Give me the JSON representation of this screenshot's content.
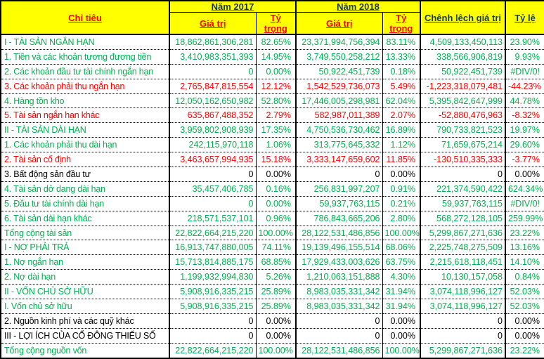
{
  "table": {
    "header": {
      "criteria": "Chỉ tiêu",
      "year1": "Năm 2017",
      "year2": "Năm 2018",
      "value_label_2017": "Giá trị",
      "weight_label_2017": "Tỷ trọng",
      "value_label_2018": "Giá trị",
      "weight_label_2018": "Tỷ trọng",
      "diff_label": "Chênh lệch giá trị",
      "ratio_label": "Tỷ lệ"
    },
    "colors": {
      "header_bg": "#FFFF00",
      "header_dark_text": "#17365D",
      "header_red_text": "#FF0000",
      "positive_green": "#00B050",
      "negative_red": "#FF0000",
      "neutral_black": "#000000"
    },
    "rows": [
      {
        "label": "I - TÀI SẢN NGẮN HẠN",
        "v2017": "18,862,861,306,281",
        "p2017": "82.65%",
        "v2018": "23,371,994,756,394",
        "p2018": "83.11%",
        "diff": "4,509,133,450,113",
        "ratio": "23.90%",
        "color": "green",
        "indent": true
      },
      {
        "label": "1. Tiền và các khoản tương đương tiền",
        "v2017": "3,410,983,351,393",
        "p2017": "14.95%",
        "v2018": "3,749,550,258,212",
        "p2018": "13.33%",
        "diff": "338,566,906,819",
        "ratio": "9.93%",
        "color": "green",
        "indent": false
      },
      {
        "label": "2. Các khoản đầu tư tài chính ngắn hạn",
        "v2017": "0",
        "p2017": "0.00%",
        "v2018": "50,922,451,739",
        "p2018": "0.18%",
        "diff": "50,922,451,739",
        "ratio": "#DIV/0!",
        "color": "green",
        "indent": false
      },
      {
        "label": "3. Các khoản phải thu ngắn hạn",
        "v2017": "2,765,847,815,554",
        "p2017": "12.12%",
        "v2018": "1,542,529,736,073",
        "p2018": "5.49%",
        "diff": "-1,223,318,079,481",
        "ratio": "-44.23%",
        "color": "red",
        "indent": false
      },
      {
        "label": "4. Hàng tồn kho",
        "v2017": "12,050,162,650,982",
        "p2017": "52.80%",
        "v2018": "17,446,005,298,981",
        "p2018": "62.04%",
        "diff": "5,395,842,647,999",
        "ratio": "44.78%",
        "color": "green",
        "indent": false
      },
      {
        "label": "5. Tài sản ngắn hạn khác",
        "v2017": "635,867,488,352",
        "p2017": "2.79%",
        "v2018": "582,987,011,389",
        "p2018": "2.07%",
        "diff": "-52,880,476,963",
        "ratio": "-8.32%",
        "color": "red",
        "indent": false
      },
      {
        "label": "II - TÀI SẢN DÀI HẠN",
        "v2017": "3,959,802,908,939",
        "p2017": "17.35%",
        "v2018": "4,750,536,730,462",
        "p2018": "16.89%",
        "diff": "790,733,821,523",
        "ratio": "19.97%",
        "color": "green",
        "indent": true
      },
      {
        "label": "1. Các khoản phải thu dài hạn",
        "v2017": "242,115,970,118",
        "p2017": "1.06%",
        "v2018": "313,775,645,332",
        "p2018": "1.12%",
        "diff": "71,659,675,214",
        "ratio": "29.60%",
        "color": "green",
        "indent": false
      },
      {
        "label": "2. Tài sản cố định",
        "v2017": "3,463,657,994,935",
        "p2017": "15.18%",
        "v2018": "3,333,147,659,602",
        "p2018": "11.85%",
        "diff": "-130,510,335,333",
        "ratio": "-3.77%",
        "color": "red",
        "indent": false
      },
      {
        "label": "3. Bất động sản đầu tư",
        "v2017": "0",
        "p2017": "0.00%",
        "v2018": "0",
        "p2018": "0.00%",
        "diff": "0",
        "ratio": "0.00%",
        "color": "black",
        "indent": false
      },
      {
        "label": "4. Tài sản dở dang dài hạn",
        "v2017": "35,457,406,785",
        "p2017": "0.16%",
        "v2018": "256,831,997,207",
        "p2018": "0.91%",
        "diff": "221,374,590,422",
        "ratio": "624.34%",
        "color": "green",
        "indent": false
      },
      {
        "label": "5. Đầu tư tài chính dài hạn",
        "v2017": "0",
        "p2017": "0.00%",
        "v2018": "59,937,763,115",
        "p2018": "0.21%",
        "diff": "59,937,763,115",
        "ratio": "#DIV/0!",
        "color": "green",
        "indent": false
      },
      {
        "label": "6. Tài sản dài hạn khác",
        "v2017": "218,571,537,101",
        "p2017": "0.96%",
        "v2018": "786,843,665,206",
        "p2018": "2.80%",
        "diff": "568,272,128,105",
        "ratio": "259.99%",
        "color": "green",
        "indent": false
      },
      {
        "label": "Tổng cộng tài sản",
        "v2017": "22,822,664,215,220",
        "p2017": "100.00%",
        "v2018": "28,122,531,486,856",
        "p2018": "100.00%",
        "diff": "5,299,867,271,636",
        "ratio": "23.22%",
        "color": "green",
        "indent": true
      },
      {
        "label": "I - NỢ PHẢI TRẢ",
        "v2017": "16,913,747,880,005",
        "p2017": "74.11%",
        "v2018": "19,139,496,155,514",
        "p2018": "68.06%",
        "diff": "2,225,748,275,509",
        "ratio": "13.16%",
        "color": "green",
        "indent": true
      },
      {
        "label": "1. Nợ ngắn hạn",
        "v2017": "15,713,814,885,175",
        "p2017": "68.85%",
        "v2018": "17,929,433,003,626",
        "p2018": "63.75%",
        "diff": "2,215,618,118,451",
        "ratio": "14.10%",
        "color": "green",
        "indent": false
      },
      {
        "label": "2. Nợ dài hạn",
        "v2017": "1,199,932,994,830",
        "p2017": "5.26%",
        "v2018": "1,210,063,151,888",
        "p2018": "4.30%",
        "diff": "10,130,157,058",
        "ratio": "0.84%",
        "color": "green",
        "indent": false
      },
      {
        "label": "II - VỐN CHỦ SỞ HỮU",
        "v2017": "5,908,916,335,215",
        "p2017": "25.89%",
        "v2018": "8,983,035,331,342",
        "p2018": "31.94%",
        "diff": "3,074,118,996,127",
        "ratio": "52.03%",
        "color": "green",
        "indent": true
      },
      {
        "label": "I. Vốn chủ sở hữu",
        "v2017": "5,908,916,335,215",
        "p2017": "25.89%",
        "v2018": "8,983,035,331,342",
        "p2018": "31.94%",
        "diff": "3,074,118,996,127",
        "ratio": "52.03%",
        "color": "green",
        "indent": false
      },
      {
        "label": "2. Nguồn kinh phí và các quỹ khác",
        "v2017": "0",
        "p2017": "0.00%",
        "v2018": "0",
        "p2018": "0.00%",
        "diff": "0",
        "ratio": "0.00%",
        "color": "black",
        "indent": false
      },
      {
        "label": "III - LỢI ÍCH CỦA CỔ ĐÔNG THIỂU SỐ",
        "v2017": "0",
        "p2017": "0.00%",
        "v2018": "0",
        "p2018": "0.00%",
        "diff": "0",
        "ratio": "0.00%",
        "color": "black",
        "indent": true
      },
      {
        "label": "Tổng cộng nguồn vốn",
        "v2017": "22,822,664,215,220",
        "p2017": "100.00%",
        "v2018": "28,122,531,486,856",
        "p2018": "100.00%",
        "diff": "5,299,867,271,636",
        "ratio": "23.22%",
        "color": "green",
        "indent": true
      }
    ]
  }
}
